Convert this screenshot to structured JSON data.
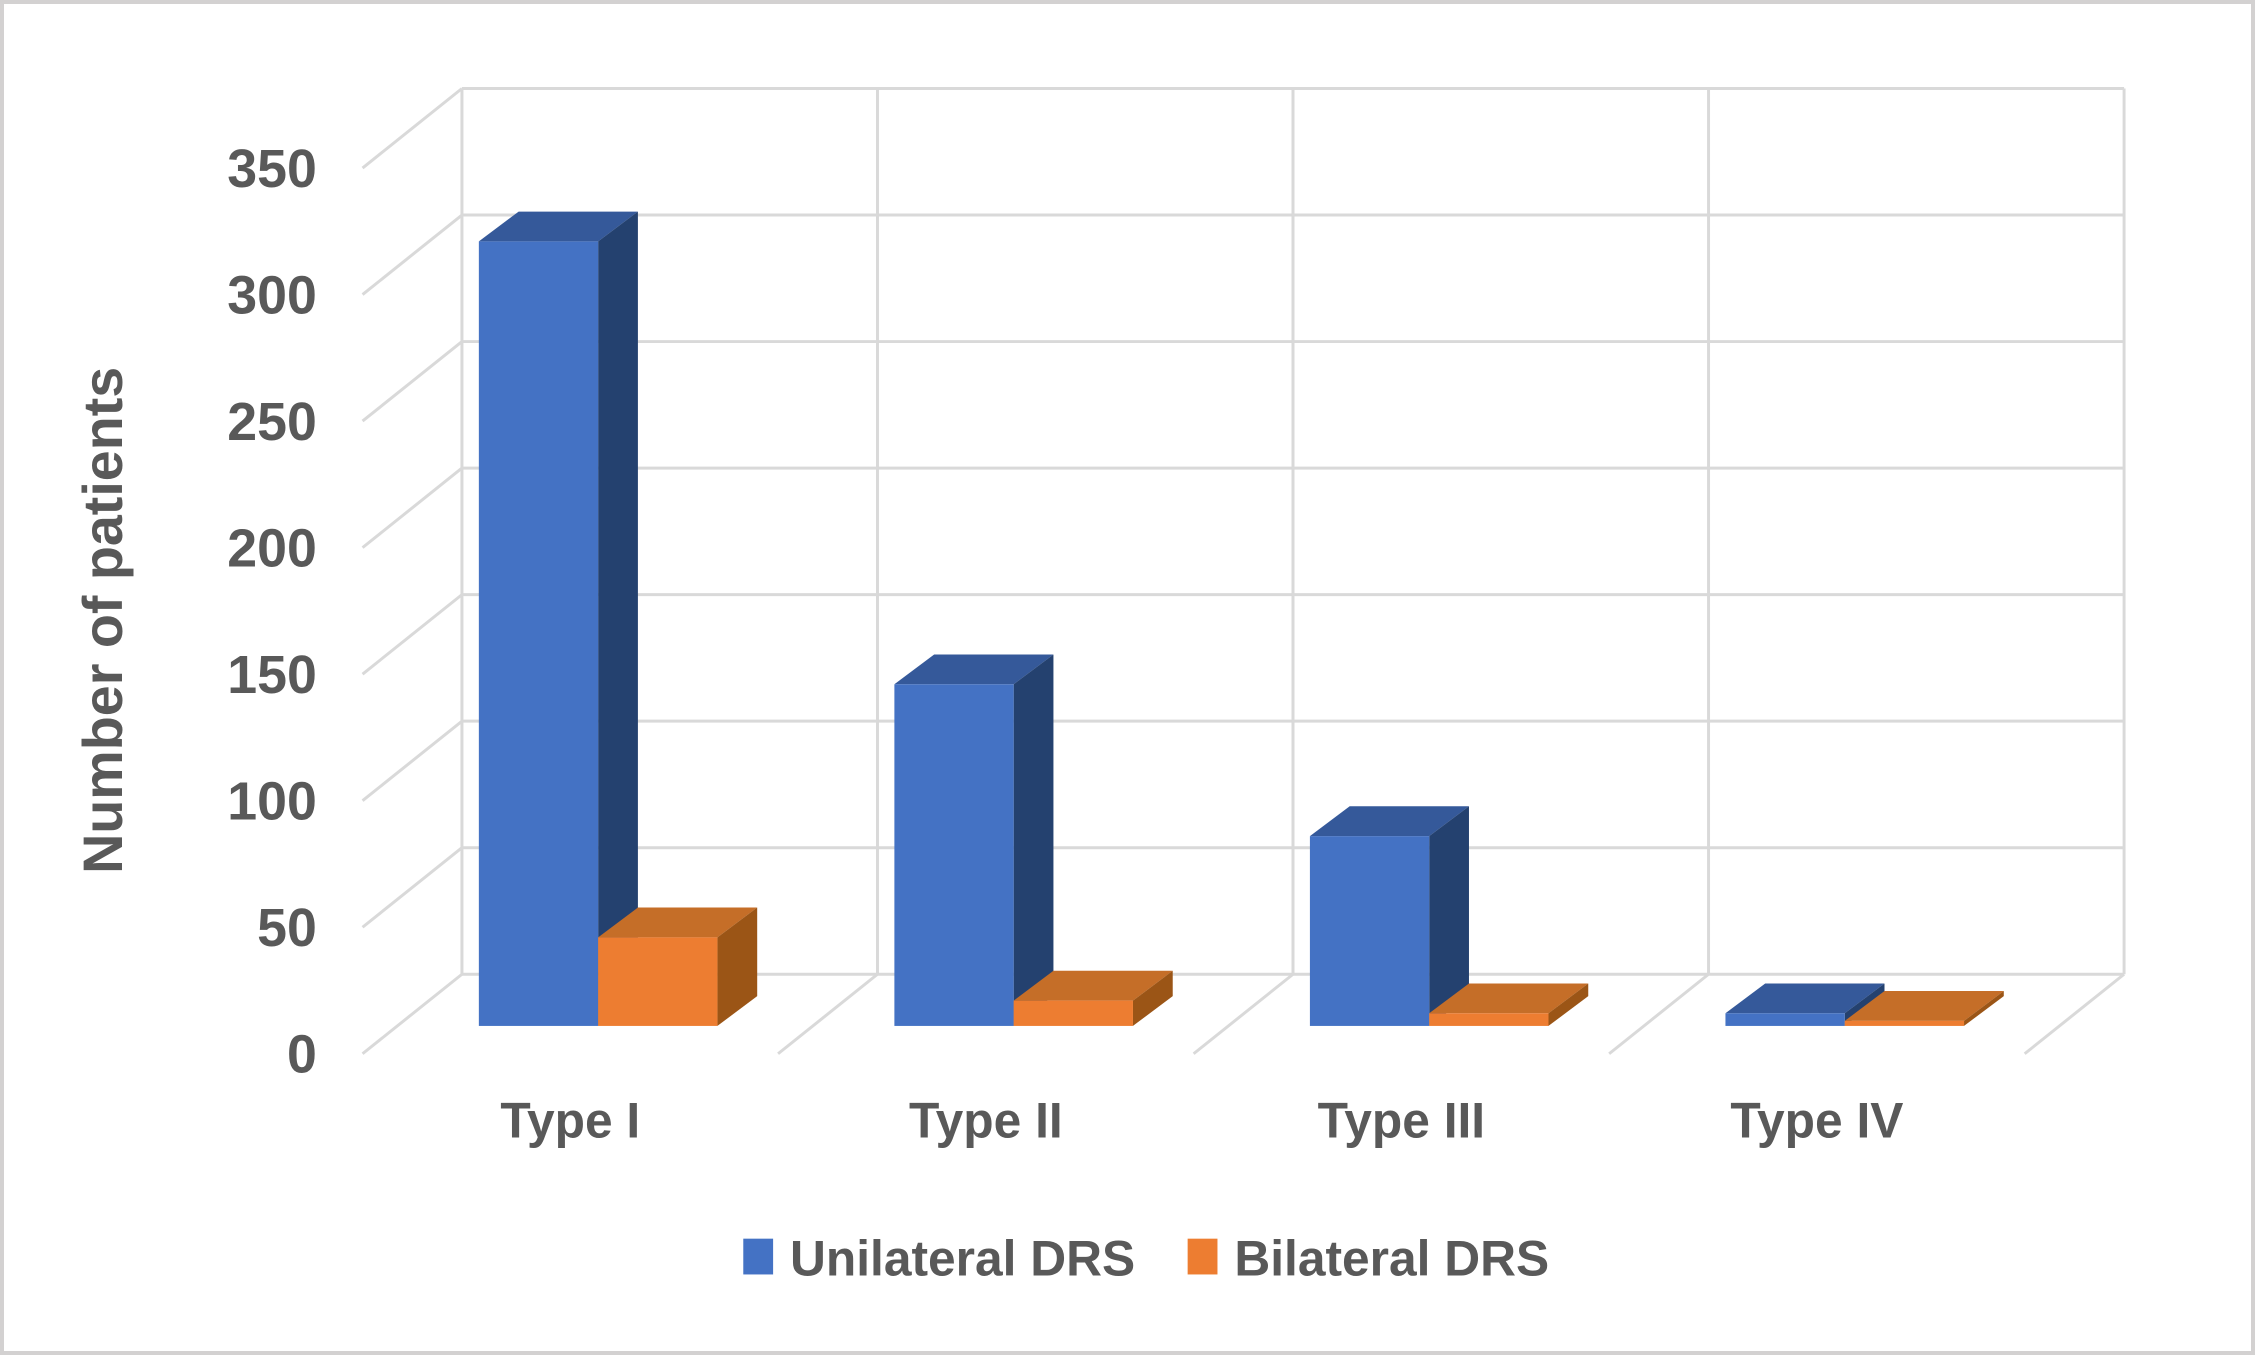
{
  "figure": {
    "background": "#ffffff",
    "border_color": "#d3d1d1"
  },
  "chart_data": {
    "type": "bar",
    "variant": "3d-clustered-column",
    "title": "",
    "xlabel": "",
    "ylabel": "Number of patients",
    "ylim": [
      0,
      350
    ],
    "ytick_step": 50,
    "yticks": [
      "0",
      "50",
      "100",
      "150",
      "200",
      "250",
      "300",
      "350"
    ],
    "grid": true,
    "gridline_color": "#D9D9D9",
    "text_color": "#595959",
    "legend_position": "bottom",
    "categories": [
      "Type I",
      "Type II",
      "Type III",
      "Type IV"
    ],
    "series": [
      {
        "name": "Unilateral DRS",
        "values": [
          310,
          135,
          75,
          5
        ],
        "color": "#4472C4",
        "color_top": "#35599A",
        "color_side": "#24416F"
      },
      {
        "name": "Bilateral DRS",
        "values": [
          35,
          10,
          5,
          2
        ],
        "color": "#ED7D31",
        "color_top": "#C56E28",
        "color_side": "#9B5516"
      }
    ]
  }
}
